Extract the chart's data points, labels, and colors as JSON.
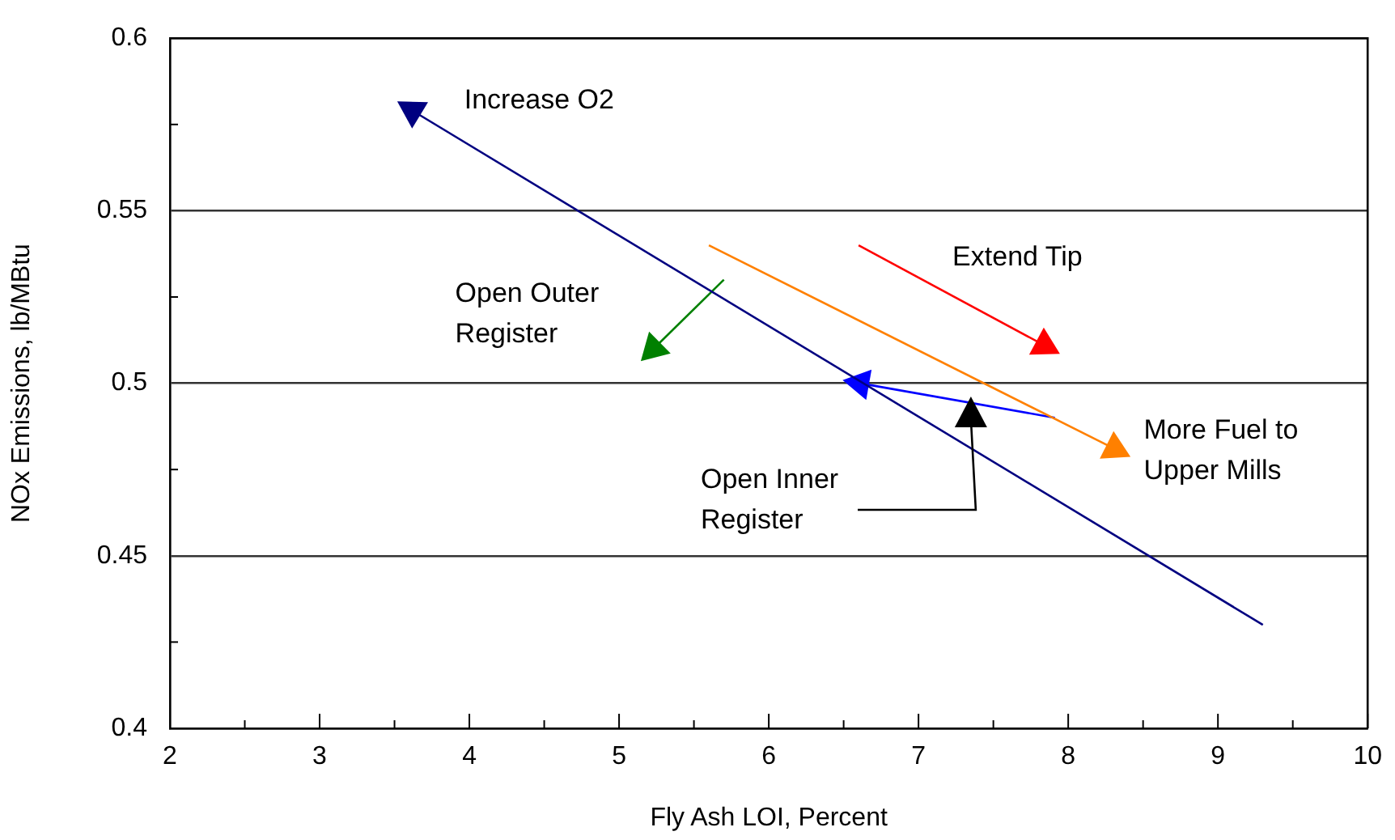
{
  "chart_data": {
    "type": "line",
    "xlabel": "Fly Ash LOI, Percent",
    "ylabel": "NOx Emissions, lb/MBtu",
    "xlim": [
      2,
      10
    ],
    "ylim": [
      0.4,
      0.6
    ],
    "xticks": [
      2,
      {
        "value": 2.5,
        "label": null
      },
      3,
      {
        "value": 3.5,
        "label": null
      },
      4,
      {
        "value": 4.5,
        "label": null
      },
      5,
      {
        "value": 5.5,
        "label": null
      },
      6,
      {
        "value": 6.5,
        "label": null
      },
      7,
      {
        "value": 7.5,
        "label": null
      },
      8,
      {
        "value": 8.5,
        "label": null
      },
      9,
      {
        "value": 9.5,
        "label": null
      },
      10
    ],
    "yticks": [
      0.4,
      {
        "value": 0.425,
        "label": null
      },
      0.45,
      {
        "value": 0.475,
        "label": null
      },
      0.5,
      {
        "value": 0.525,
        "label": null
      },
      0.55,
      {
        "value": 0.575,
        "label": null
      },
      0.6
    ],
    "grid": "y",
    "marker": "triangle",
    "line_style": "solid",
    "series": [
      {
        "name": "Increase O2",
        "color": "#000080",
        "x": [
          9.3,
          3.62
        ],
        "values": [
          0.43,
          0.579
        ]
      },
      {
        "name": "Extend Tip",
        "color": "#ff0000",
        "x": [
          6.6,
          7.84
        ],
        "values": [
          0.54,
          0.511
        ]
      },
      {
        "name": "Open Outer Register",
        "color": "#008000",
        "x": [
          5.7,
          5.23
        ],
        "values": [
          0.53,
          0.51
        ]
      },
      {
        "name": "More Fuel to Upper Mills",
        "color": "#ff8000",
        "x": [
          5.6,
          8.31
        ],
        "values": [
          0.54,
          0.481
        ]
      },
      {
        "color": "#0000ff",
        "x": [
          7.91,
          6.61
        ],
        "values": [
          0.49,
          0.5
        ]
      }
    ],
    "annotations": [
      "Open Inner Register"
    ]
  }
}
